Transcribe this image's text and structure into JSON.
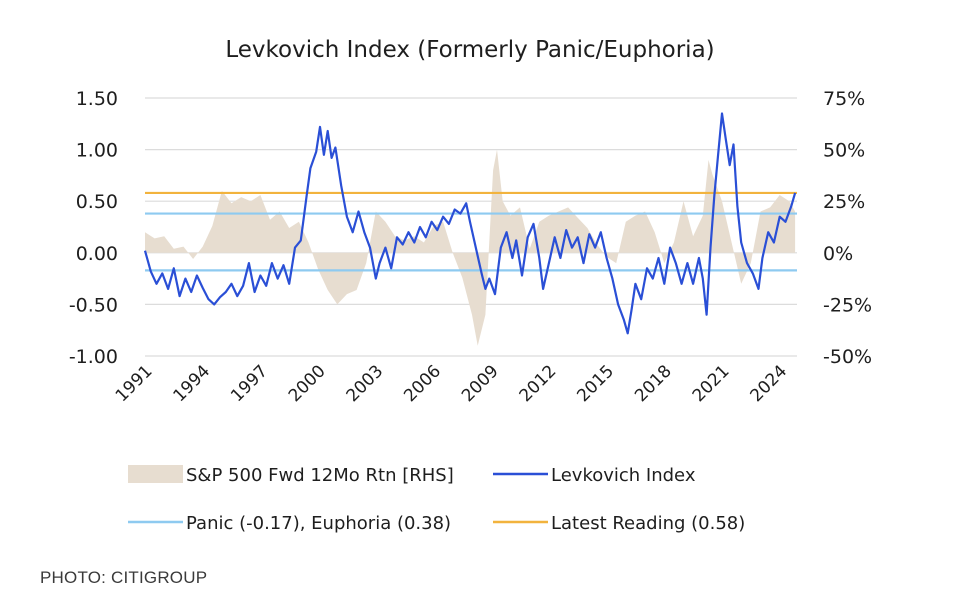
{
  "chart_data": {
    "type": "line",
    "title": "Levkovich Index (Formerly Panic/Euphoria)",
    "x_range": [
      1991,
      2024.9
    ],
    "x_ticks": [
      "1991",
      "1994",
      "1997",
      "2000",
      "2003",
      "2006",
      "2009",
      "2012",
      "2015",
      "2018",
      "2021",
      "2024"
    ],
    "y_left": {
      "range": [
        -1.0,
        1.5
      ],
      "ticks": [
        "1.50",
        "1.00",
        "0.50",
        "0.00",
        "-0.50",
        "-1.00"
      ]
    },
    "y_right": {
      "range": [
        -50,
        75
      ],
      "ticks": [
        "75%",
        "50%",
        "25%",
        "0%",
        "-25%",
        "-50%"
      ]
    },
    "grid": true,
    "thresholds": [
      {
        "label": "Panic (-0.17), Euphoria (0.38)",
        "values": [
          -0.17,
          0.38
        ],
        "color": "#8ecaf0"
      },
      {
        "label": "Latest Reading (0.58)",
        "values": [
          0.58
        ],
        "color": "#f2b33d"
      }
    ],
    "series": [
      {
        "name": "Levkovich Index",
        "axis": "left",
        "color": "#2a4fd6",
        "points": [
          [
            1991.0,
            0.02
          ],
          [
            1991.3,
            -0.18
          ],
          [
            1991.6,
            -0.3
          ],
          [
            1991.9,
            -0.2
          ],
          [
            1992.2,
            -0.35
          ],
          [
            1992.5,
            -0.15
          ],
          [
            1992.8,
            -0.42
          ],
          [
            1993.1,
            -0.25
          ],
          [
            1993.4,
            -0.38
          ],
          [
            1993.7,
            -0.22
          ],
          [
            1994.0,
            -0.34
          ],
          [
            1994.3,
            -0.45
          ],
          [
            1994.6,
            -0.5
          ],
          [
            1994.9,
            -0.43
          ],
          [
            1995.2,
            -0.38
          ],
          [
            1995.5,
            -0.3
          ],
          [
            1995.8,
            -0.42
          ],
          [
            1996.1,
            -0.32
          ],
          [
            1996.4,
            -0.1
          ],
          [
            1996.7,
            -0.38
          ],
          [
            1997.0,
            -0.22
          ],
          [
            1997.3,
            -0.32
          ],
          [
            1997.6,
            -0.1
          ],
          [
            1997.9,
            -0.25
          ],
          [
            1998.2,
            -0.12
          ],
          [
            1998.5,
            -0.3
          ],
          [
            1998.8,
            0.05
          ],
          [
            1999.1,
            0.12
          ],
          [
            1999.4,
            0.55
          ],
          [
            1999.6,
            0.82
          ],
          [
            1999.9,
            0.98
          ],
          [
            2000.1,
            1.22
          ],
          [
            2000.3,
            0.95
          ],
          [
            2000.5,
            1.18
          ],
          [
            2000.7,
            0.92
          ],
          [
            2000.9,
            1.02
          ],
          [
            2001.2,
            0.65
          ],
          [
            2001.5,
            0.35
          ],
          [
            2001.8,
            0.2
          ],
          [
            2002.1,
            0.4
          ],
          [
            2002.4,
            0.2
          ],
          [
            2002.7,
            0.05
          ],
          [
            2003.0,
            -0.25
          ],
          [
            2003.2,
            -0.1
          ],
          [
            2003.5,
            0.05
          ],
          [
            2003.8,
            -0.15
          ],
          [
            2004.1,
            0.15
          ],
          [
            2004.4,
            0.08
          ],
          [
            2004.7,
            0.2
          ],
          [
            2005.0,
            0.1
          ],
          [
            2005.3,
            0.25
          ],
          [
            2005.6,
            0.15
          ],
          [
            2005.9,
            0.3
          ],
          [
            2006.2,
            0.22
          ],
          [
            2006.5,
            0.35
          ],
          [
            2006.8,
            0.28
          ],
          [
            2007.1,
            0.42
          ],
          [
            2007.4,
            0.38
          ],
          [
            2007.7,
            0.48
          ],
          [
            2007.9,
            0.3
          ],
          [
            2008.2,
            0.05
          ],
          [
            2008.5,
            -0.2
          ],
          [
            2008.7,
            -0.35
          ],
          [
            2008.9,
            -0.25
          ],
          [
            2009.2,
            -0.4
          ],
          [
            2009.5,
            0.05
          ],
          [
            2009.8,
            0.2
          ],
          [
            2010.1,
            -0.05
          ],
          [
            2010.3,
            0.12
          ],
          [
            2010.6,
            -0.22
          ],
          [
            2010.9,
            0.15
          ],
          [
            2011.2,
            0.28
          ],
          [
            2011.5,
            -0.05
          ],
          [
            2011.7,
            -0.35
          ],
          [
            2012.0,
            -0.1
          ],
          [
            2012.3,
            0.15
          ],
          [
            2012.6,
            -0.05
          ],
          [
            2012.9,
            0.22
          ],
          [
            2013.2,
            0.05
          ],
          [
            2013.5,
            0.15
          ],
          [
            2013.8,
            -0.1
          ],
          [
            2014.1,
            0.18
          ],
          [
            2014.4,
            0.05
          ],
          [
            2014.7,
            0.2
          ],
          [
            2015.0,
            -0.05
          ],
          [
            2015.3,
            -0.25
          ],
          [
            2015.6,
            -0.5
          ],
          [
            2015.9,
            -0.65
          ],
          [
            2016.1,
            -0.78
          ],
          [
            2016.3,
            -0.55
          ],
          [
            2016.5,
            -0.3
          ],
          [
            2016.8,
            -0.45
          ],
          [
            2017.1,
            -0.15
          ],
          [
            2017.4,
            -0.25
          ],
          [
            2017.7,
            -0.05
          ],
          [
            2018.0,
            -0.3
          ],
          [
            2018.3,
            0.05
          ],
          [
            2018.6,
            -0.1
          ],
          [
            2018.9,
            -0.3
          ],
          [
            2019.2,
            -0.1
          ],
          [
            2019.5,
            -0.3
          ],
          [
            2019.8,
            -0.05
          ],
          [
            2020.0,
            -0.25
          ],
          [
            2020.2,
            -0.6
          ],
          [
            2020.4,
            0.05
          ],
          [
            2020.6,
            0.55
          ],
          [
            2020.8,
            0.95
          ],
          [
            2021.0,
            1.35
          ],
          [
            2021.2,
            1.1
          ],
          [
            2021.4,
            0.85
          ],
          [
            2021.6,
            1.05
          ],
          [
            2021.8,
            0.45
          ],
          [
            2022.0,
            0.1
          ],
          [
            2022.3,
            -0.1
          ],
          [
            2022.6,
            -0.2
          ],
          [
            2022.9,
            -0.35
          ],
          [
            2023.1,
            -0.05
          ],
          [
            2023.4,
            0.2
          ],
          [
            2023.7,
            0.1
          ],
          [
            2024.0,
            0.35
          ],
          [
            2024.3,
            0.3
          ],
          [
            2024.6,
            0.45
          ],
          [
            2024.8,
            0.58
          ]
        ]
      },
      {
        "name": "S&P 500 Fwd 12Mo Rtn [RHS]",
        "axis": "right",
        "color": "#e7ddd0",
        "points": [
          [
            1991.0,
            10
          ],
          [
            1991.5,
            7
          ],
          [
            1992.0,
            8
          ],
          [
            1992.5,
            2
          ],
          [
            1993.0,
            3
          ],
          [
            1993.5,
            -3
          ],
          [
            1994.0,
            3
          ],
          [
            1994.5,
            13
          ],
          [
            1995.0,
            30
          ],
          [
            1995.5,
            24
          ],
          [
            1996.0,
            27
          ],
          [
            1996.5,
            25
          ],
          [
            1997.0,
            28
          ],
          [
            1997.5,
            16
          ],
          [
            1998.0,
            20
          ],
          [
            1998.5,
            12
          ],
          [
            1999.0,
            15
          ],
          [
            1999.5,
            5
          ],
          [
            2000.0,
            -8
          ],
          [
            2000.5,
            -18
          ],
          [
            2001.0,
            -25
          ],
          [
            2001.5,
            -20
          ],
          [
            2002.0,
            -18
          ],
          [
            2002.5,
            -5
          ],
          [
            2003.0,
            20
          ],
          [
            2003.5,
            15
          ],
          [
            2004.0,
            8
          ],
          [
            2004.5,
            6
          ],
          [
            2005.0,
            8
          ],
          [
            2005.5,
            5
          ],
          [
            2006.0,
            13
          ],
          [
            2006.5,
            15
          ],
          [
            2007.0,
            0
          ],
          [
            2007.5,
            -12
          ],
          [
            2008.0,
            -30
          ],
          [
            2008.3,
            -45
          ],
          [
            2008.7,
            -30
          ],
          [
            2009.1,
            40
          ],
          [
            2009.3,
            50
          ],
          [
            2009.6,
            25
          ],
          [
            2010.0,
            18
          ],
          [
            2010.5,
            22
          ],
          [
            2011.0,
            2
          ],
          [
            2011.5,
            15
          ],
          [
            2012.0,
            18
          ],
          [
            2012.5,
            20
          ],
          [
            2013.0,
            22
          ],
          [
            2013.5,
            17
          ],
          [
            2014.0,
            12
          ],
          [
            2014.5,
            4
          ],
          [
            2015.0,
            -2
          ],
          [
            2015.5,
            -5
          ],
          [
            2016.0,
            15
          ],
          [
            2016.5,
            18
          ],
          [
            2017.0,
            20
          ],
          [
            2017.5,
            10
          ],
          [
            2018.0,
            -5
          ],
          [
            2018.5,
            5
          ],
          [
            2019.0,
            25
          ],
          [
            2019.5,
            8
          ],
          [
            2020.0,
            18
          ],
          [
            2020.3,
            45
          ],
          [
            2020.5,
            38
          ],
          [
            2021.0,
            25
          ],
          [
            2021.5,
            5
          ],
          [
            2022.0,
            -15
          ],
          [
            2022.5,
            -5
          ],
          [
            2023.0,
            20
          ],
          [
            2023.5,
            22
          ],
          [
            2024.0,
            28
          ],
          [
            2024.5,
            25
          ],
          [
            2024.8,
            20
          ]
        ]
      }
    ],
    "legend": [
      {
        "label": "S&P 500 Fwd 12Mo Rtn [RHS]",
        "kind": "area",
        "color": "#e7ddd0"
      },
      {
        "label": "Levkovich Index",
        "kind": "line",
        "color": "#2a4fd6"
      },
      {
        "label": "Panic (-0.17), Euphoria (0.38)",
        "kind": "line",
        "color": "#8ecaf0"
      },
      {
        "label": "Latest Reading (0.58)",
        "kind": "line",
        "color": "#f2b33d"
      }
    ]
  },
  "credit": "PHOTO: CITIGROUP"
}
